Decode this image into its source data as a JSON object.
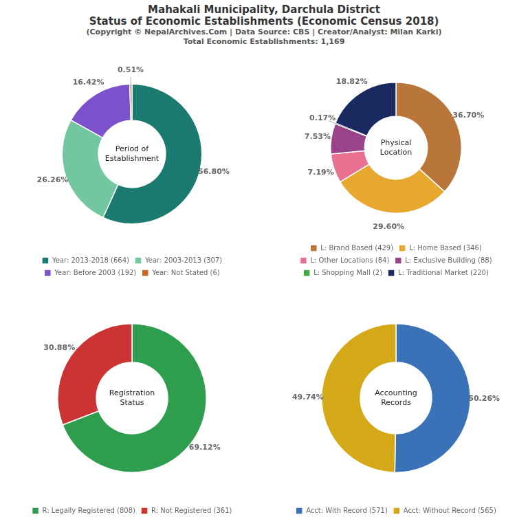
{
  "title": [
    "Mahakali Municipality, Darchula District",
    "Status of Economic Establishments (Economic Census 2018)"
  ],
  "subtitle": [
    "(Copyright © NepalArchives.Com | Data Source: CBS | Creator/Analyst: Milan Karki)",
    "Total Economic Establishments: 1,169"
  ],
  "chart_data": [
    {
      "type": "doughnut",
      "title": "Period of\nEstablishment",
      "categories": [
        "Year: 2013-2018 (664)",
        "Year: 2003-2013 (307)",
        "Year: Before 2003 (192)",
        "Year: Not Stated (6)"
      ],
      "values": [
        56.8,
        26.26,
        16.42,
        0.51
      ],
      "value_labels": [
        "56.80%",
        "26.26%",
        "16.42%",
        "0.51%"
      ],
      "colors": [
        "#1a7a70",
        "#72c6a0",
        "#7b52cc",
        "#cc6622"
      ],
      "data_labels": true,
      "legend": "bottom"
    },
    {
      "type": "doughnut",
      "title": "Physical\nLocation",
      "categories": [
        "L: Brand Based (429)",
        "L: Home Based (346)",
        "L: Other Locations (84)",
        "L: Exclusive Building (88)",
        "L: Shopping Mall (2)",
        "L: Traditional Market (220)"
      ],
      "values": [
        36.7,
        29.6,
        7.19,
        7.53,
        0.17,
        18.82
      ],
      "value_labels": [
        "36.70%",
        "29.60%",
        "7.19%",
        "7.53%",
        "0.17%",
        "18.82%"
      ],
      "colors": [
        "#b8763a",
        "#e8a830",
        "#e87090",
        "#994488",
        "#44aa44",
        "#1a2a60"
      ],
      "data_labels": true,
      "legend": "bottom"
    },
    {
      "type": "doughnut",
      "title": "Registration\nStatus",
      "categories": [
        "R: Legally Registered (808)",
        "R: Not Registered (361)"
      ],
      "values": [
        69.12,
        30.88
      ],
      "value_labels": [
        "69.12%",
        "30.88%"
      ],
      "colors": [
        "#2e9e4e",
        "#cc3333"
      ],
      "data_labels": true,
      "legend": "bottom"
    },
    {
      "type": "doughnut",
      "title": "Accounting\nRecords",
      "categories": [
        "Acct: With Record (571)",
        "Acct: Without Record (565)"
      ],
      "values": [
        50.26,
        49.74
      ],
      "value_labels": [
        "50.26%",
        "49.74%"
      ],
      "colors": [
        "#3a72b8",
        "#d4a817"
      ],
      "data_labels": true,
      "legend": "bottom"
    }
  ]
}
